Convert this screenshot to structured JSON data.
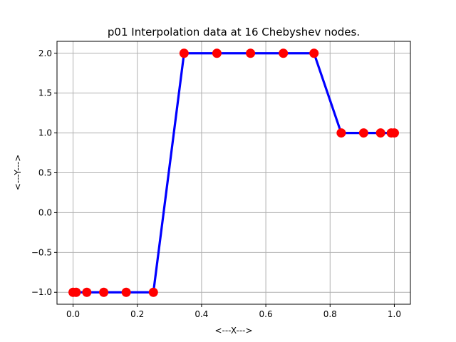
{
  "chart_data": {
    "type": "line",
    "title": "p01 Interpolation data at 16 Chebyshev nodes.",
    "xlabel": "<---X--->",
    "ylabel": "<---Y--->",
    "xlim": [
      -0.05,
      1.05
    ],
    "ylim": [
      -1.15,
      2.15
    ],
    "xticks": [
      0.0,
      0.2,
      0.4,
      0.6,
      0.8,
      1.0
    ],
    "xtick_labels": [
      "0.0",
      "0.2",
      "0.4",
      "0.6",
      "0.8",
      "1.0"
    ],
    "yticks": [
      -1.0,
      -0.5,
      0.0,
      0.5,
      1.0,
      1.5,
      2.0
    ],
    "ytick_labels": [
      "−1.0",
      "−0.5",
      "0.0",
      "0.5",
      "1.0",
      "1.5",
      "2.0"
    ],
    "grid": true,
    "line_color": "#0000ff",
    "marker_color": "#ff0000",
    "series": [
      {
        "x": [
          0.0,
          0.0096,
          0.0428,
          0.0955,
          0.1654,
          0.25,
          0.3455,
          0.4477,
          0.5523,
          0.6545,
          0.75,
          0.8346,
          0.9045,
          0.9572,
          0.9904,
          1.0
        ],
        "y": [
          -1,
          -1,
          -1,
          -1,
          -1,
          -1,
          2,
          2,
          2,
          2,
          2,
          1,
          1,
          1,
          1,
          1
        ]
      }
    ]
  }
}
